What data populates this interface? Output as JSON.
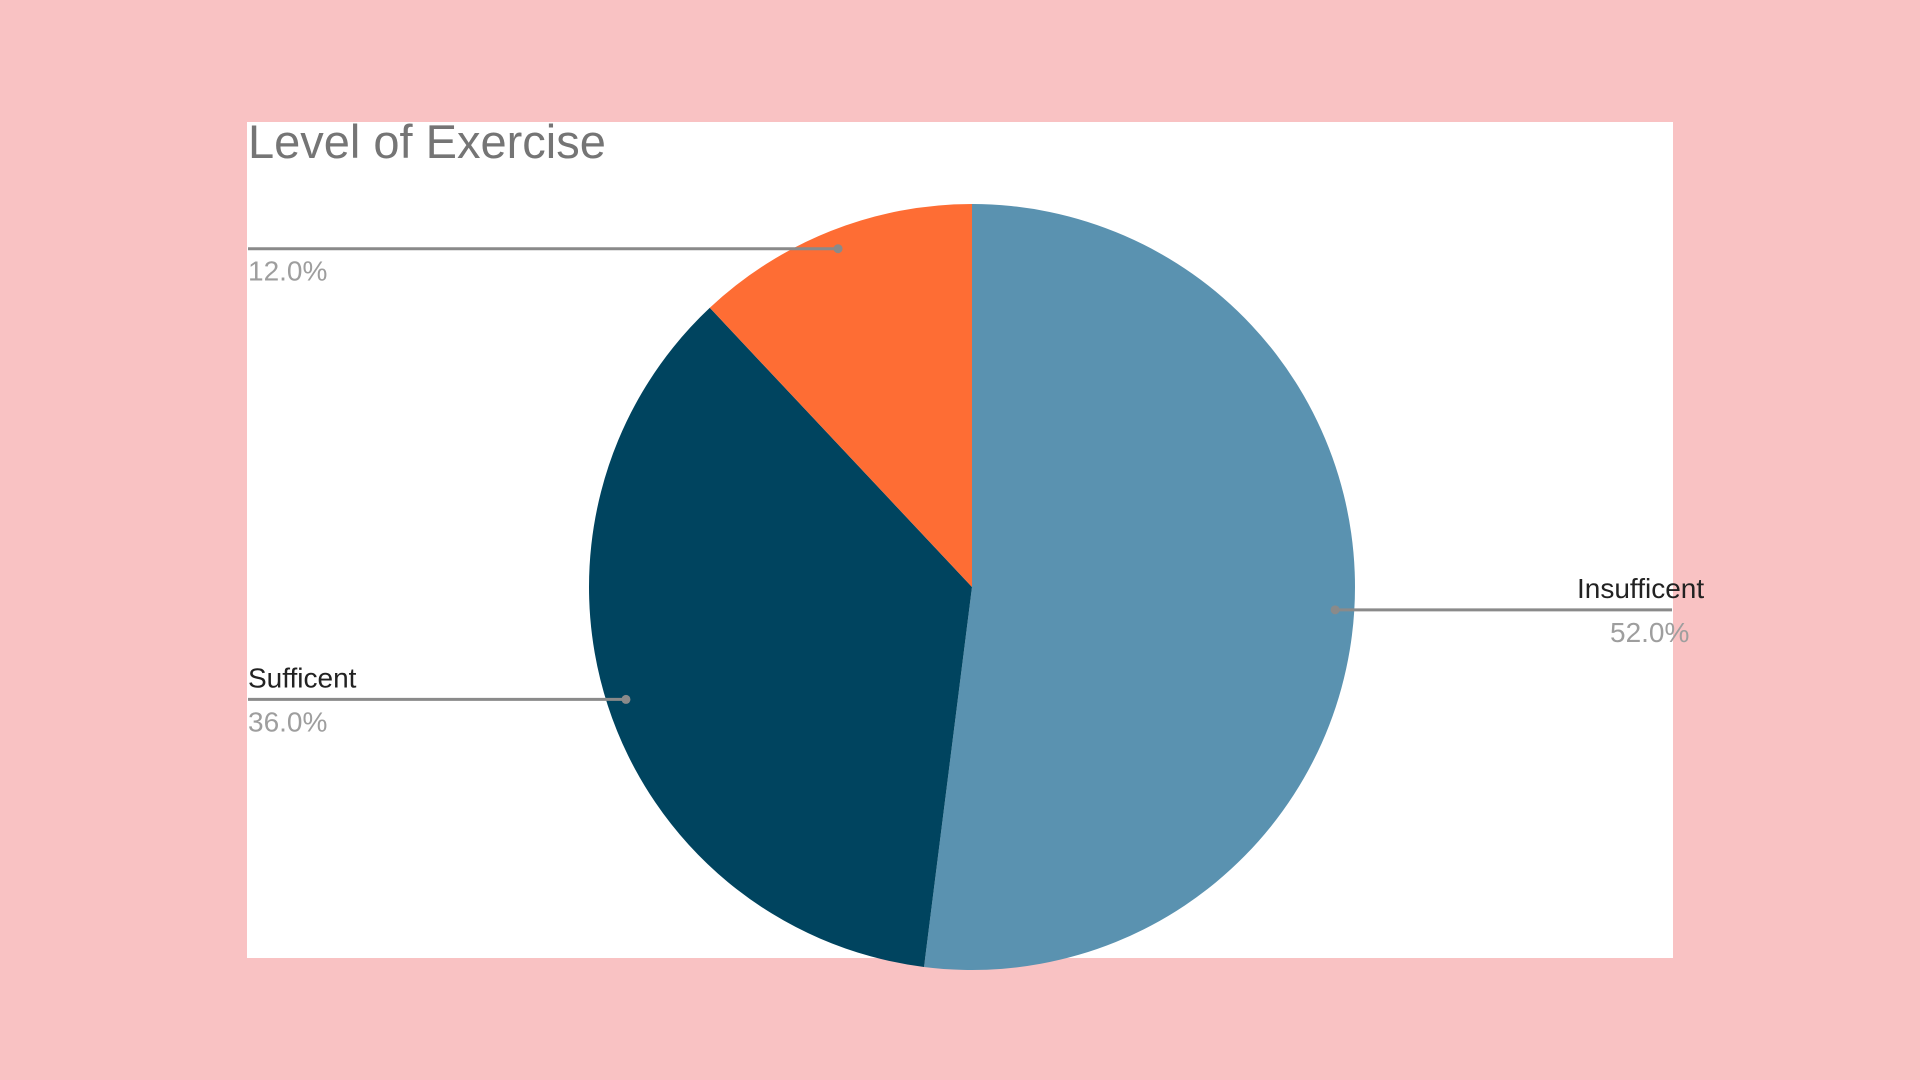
{
  "chart_data": {
    "type": "pie",
    "title": "Level of Exercise",
    "slices": [
      {
        "label": "Insufficent",
        "value": 52.0,
        "value_label": "52.0%",
        "color": "#5a92b0"
      },
      {
        "label": "Sufficent",
        "value": 36.0,
        "value_label": "36.0%",
        "color": "#00445f"
      },
      {
        "label": "",
        "value": 12.0,
        "value_label": "12.0%",
        "color": "#fe6d34"
      }
    ],
    "start_angle": "12 o'clock",
    "direction": "clockwise",
    "legend": "none"
  },
  "colors": {
    "background": "#f9c2c3",
    "card": "#ffffff",
    "title": "#757575",
    "label": "#222222",
    "percent": "#9e9e9e",
    "leader": "#8a8a8a"
  }
}
